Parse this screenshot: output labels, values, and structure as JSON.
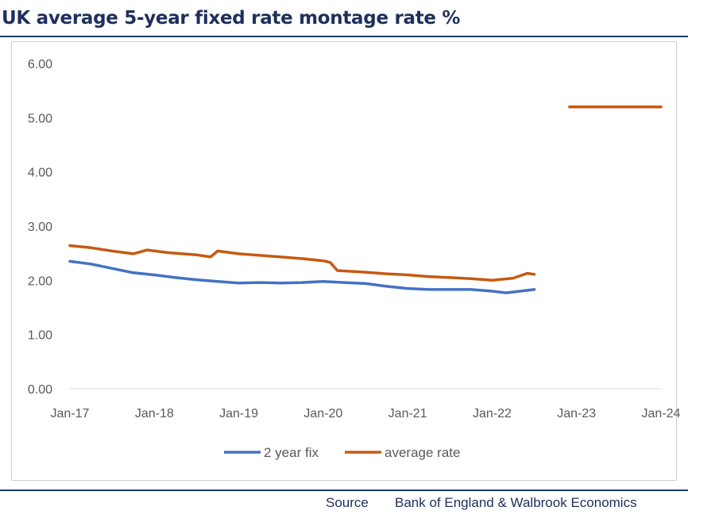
{
  "header": {
    "title": "UK average 5-year fixed rate montage rate %"
  },
  "footer": {
    "source_label": "Source",
    "source_text": "Bank of England & Walbrook Economics"
  },
  "chart_data": {
    "type": "line",
    "title": "UK average 5-year fixed rate montage rate %",
    "xlabel": "",
    "ylabel": "",
    "ylim": [
      0,
      6
    ],
    "y_ticks": [
      "0.00",
      "1.00",
      "2.00",
      "3.00",
      "4.00",
      "5.00",
      "6.00"
    ],
    "x_ticks": [
      "Jan-17",
      "Jan-18",
      "Jan-19",
      "Jan-20",
      "Jan-21",
      "Jan-22",
      "Jan-23",
      "Jan-24"
    ],
    "grid": false,
    "legend_position": "bottom",
    "series": [
      {
        "name": "2 year fix",
        "color": "#4472c4",
        "points": [
          [
            "2017-01",
            2.35
          ],
          [
            "2017-04",
            2.3
          ],
          [
            "2017-07",
            2.22
          ],
          [
            "2017-10",
            2.14
          ],
          [
            "2018-01",
            2.1
          ],
          [
            "2018-04",
            2.05
          ],
          [
            "2018-07",
            2.01
          ],
          [
            "2018-10",
            1.98
          ],
          [
            "2019-01",
            1.95
          ],
          [
            "2019-04",
            1.96
          ],
          [
            "2019-07",
            1.95
          ],
          [
            "2019-10",
            1.96
          ],
          [
            "2020-01",
            1.98
          ],
          [
            "2020-04",
            1.96
          ],
          [
            "2020-07",
            1.94
          ],
          [
            "2020-10",
            1.89
          ],
          [
            "2021-01",
            1.85
          ],
          [
            "2021-04",
            1.83
          ],
          [
            "2021-07",
            1.83
          ],
          [
            "2021-10",
            1.83
          ],
          [
            "2022-01",
            1.8
          ],
          [
            "2022-03",
            1.77
          ],
          [
            "2022-05",
            1.8
          ],
          [
            "2022-07",
            1.83
          ]
        ]
      },
      {
        "name": "average rate",
        "color": "#c55a11",
        "points": [
          [
            "2017-01",
            2.64
          ],
          [
            "2017-04",
            2.6
          ],
          [
            "2017-07",
            2.54
          ],
          [
            "2017-10",
            2.49
          ],
          [
            "2017-12",
            2.56
          ],
          [
            "2018-03",
            2.51
          ],
          [
            "2018-07",
            2.47
          ],
          [
            "2018-09",
            2.43
          ],
          [
            "2018-10",
            2.54
          ],
          [
            "2019-01",
            2.49
          ],
          [
            "2019-04",
            2.46
          ],
          [
            "2019-07",
            2.43
          ],
          [
            "2019-10",
            2.4
          ],
          [
            "2020-01",
            2.36
          ],
          [
            "2020-02",
            2.33
          ],
          [
            "2020-03",
            2.18
          ],
          [
            "2020-07",
            2.15
          ],
          [
            "2020-10",
            2.12
          ],
          [
            "2021-01",
            2.1
          ],
          [
            "2021-04",
            2.07
          ],
          [
            "2021-07",
            2.05
          ],
          [
            "2021-10",
            2.03
          ],
          [
            "2022-01",
            2.0
          ],
          [
            "2022-04",
            2.04
          ],
          [
            "2022-06",
            2.13
          ],
          [
            "2022-07",
            2.11
          ]
        ]
      },
      {
        "name": "",
        "color": "#c55a11",
        "points": [
          [
            "2022-12",
            5.2
          ],
          [
            "2024-01",
            5.2
          ]
        ]
      }
    ]
  }
}
